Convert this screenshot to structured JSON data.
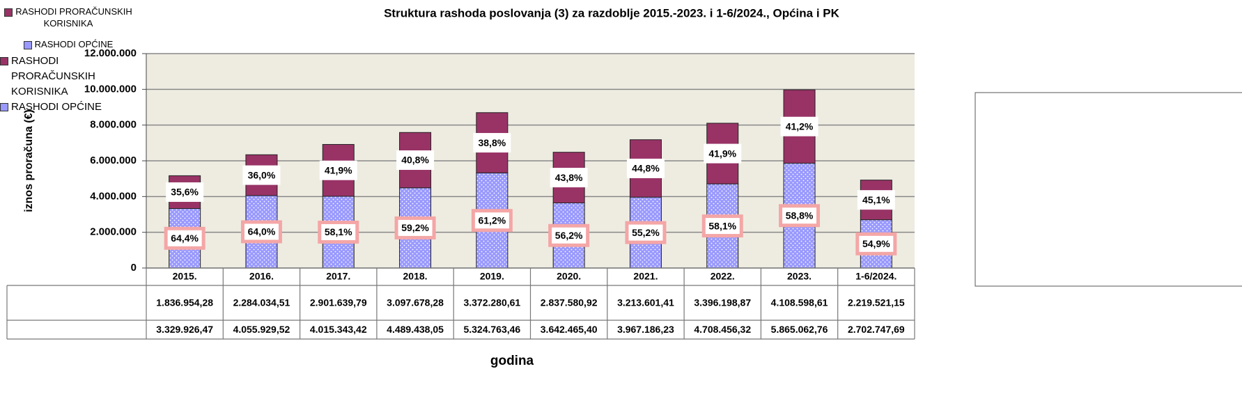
{
  "chart_data": {
    "type": "stacked_bar",
    "title": "Struktura rashoda poslovanja (3) za razdoblje 2015.-2023. i 1-6/2024., Općina i PK",
    "y_label": "iznos proračuna (€)",
    "x_label": "godina",
    "categories": [
      "2015.",
      "2016.",
      "2017.",
      "2018.",
      "2019.",
      "2020.",
      "2021.",
      "2022.",
      "2023.",
      "1-6/2024."
    ],
    "series": [
      {
        "name": "RASHODI PRORAČUNSKIH KORISNIKA",
        "color": "#993366",
        "values": [
          1836954.28,
          2284034.51,
          2901639.79,
          3097678.28,
          3372280.61,
          2837580.92,
          3213601.41,
          3396198.87,
          4108598.61,
          2219521.15
        ],
        "value_labels": [
          "1.836.954,28",
          "2.284.034,51",
          "2.901.639,79",
          "3.097.678,28",
          "3.372.280,61",
          "2.837.580,92",
          "3.213.601,41",
          "3.396.198,87",
          "4.108.598,61",
          "2.219.521,15"
        ],
        "share_values": [
          35.6,
          36.0,
          41.9,
          40.8,
          38.8,
          43.8,
          44.8,
          41.9,
          41.2,
          45.1
        ],
        "share_labels": [
          "35,6%",
          "36,0%",
          "41,9%",
          "40,8%",
          "38,8%",
          "43,8%",
          "44,8%",
          "41,9%",
          "41,2%",
          "45,1%"
        ]
      },
      {
        "name": "RASHODI OPĆINE",
        "color": "#9999ff",
        "values": [
          3329926.47,
          4055929.52,
          4015343.42,
          4489438.05,
          5324763.46,
          3642465.4,
          3967186.23,
          4708456.32,
          5865062.76,
          2702747.69
        ],
        "value_labels": [
          "3.329.926,47",
          "4.055.929,52",
          "4.015.343,42",
          "4.489.438,05",
          "5.324.763,46",
          "3.642.465,40",
          "3.967.186,23",
          "4.708.456,32",
          "5.865.062,76",
          "2.702.747,69"
        ],
        "share_values": [
          64.4,
          64.0,
          58.1,
          59.2,
          61.2,
          56.2,
          55.2,
          58.1,
          58.8,
          54.9
        ],
        "share_labels": [
          "64,4%",
          "64,0%",
          "58,1%",
          "59,2%",
          "61,2%",
          "56,2%",
          "55,2%",
          "58,1%",
          "58,8%",
          "54,9%"
        ]
      }
    ],
    "ylim": [
      0,
      12000000
    ],
    "yticks": [
      {
        "value": 0,
        "label": "0"
      },
      {
        "value": 2000000,
        "label": "2.000.000"
      },
      {
        "value": 4000000,
        "label": "4.000.000"
      },
      {
        "value": 6000000,
        "label": "6.000.000"
      },
      {
        "value": 8000000,
        "label": "8.000.000"
      },
      {
        "value": 10000000,
        "label": "10.000.000"
      },
      {
        "value": 12000000,
        "label": "12.000.000"
      }
    ],
    "grid": true,
    "plot_background": "#eeece1",
    "legend": "right"
  }
}
